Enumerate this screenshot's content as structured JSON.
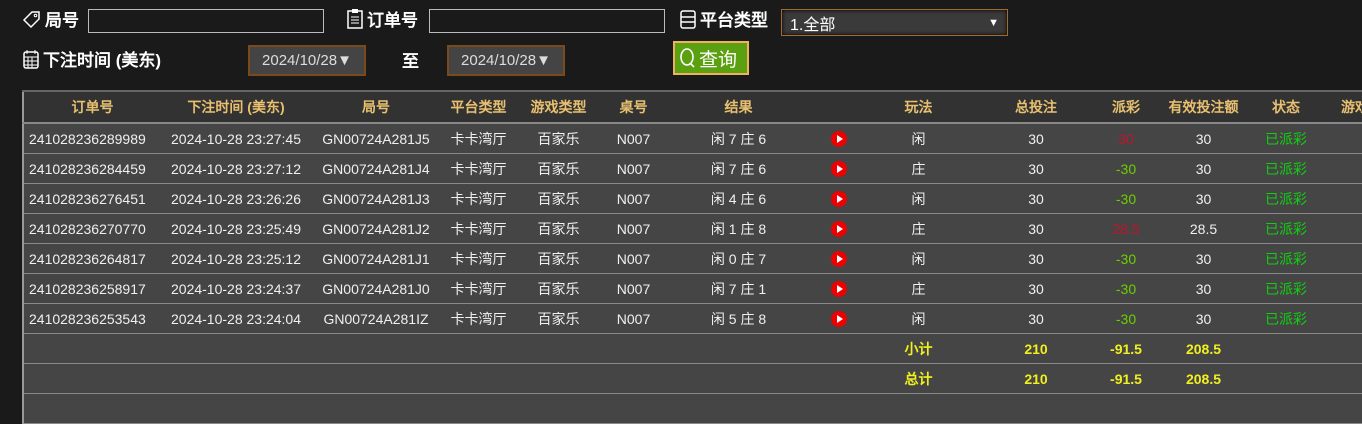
{
  "filters": {
    "round_label": "局号",
    "round_value": "",
    "order_label": "订单号",
    "order_value": "",
    "platform_label": "平台类型",
    "platform_value": "1.全部",
    "time_label": "下注时间 (美东)",
    "date_from": "2024/10/28▼",
    "to_label": "至",
    "date_to": "2024/10/28▼",
    "query_label": "查询"
  },
  "table": {
    "headers": [
      "订单号",
      "下注时间 (美东)",
      "局号",
      "平台类型",
      "游戏类型",
      "桌号",
      "结果",
      "",
      "玩法",
      "总投注",
      "派彩",
      "有效投注额",
      "状态",
      "游戏"
    ],
    "rows": [
      {
        "order": "241028236289989",
        "time": "2024-10-28 23:27:45",
        "round": "GN00724A281J5",
        "platform": "卡卡湾厅",
        "game": "百家乐",
        "table": "N007",
        "result": "闲 7 庄 6",
        "play": "闲",
        "bet": "30",
        "payout": "30",
        "payout_color": "red",
        "valid": "30",
        "status": "已派彩"
      },
      {
        "order": "241028236284459",
        "time": "2024-10-28 23:27:12",
        "round": "GN00724A281J4",
        "platform": "卡卡湾厅",
        "game": "百家乐",
        "table": "N007",
        "result": "闲 7 庄 6",
        "play": "庄",
        "bet": "30",
        "payout": "-30",
        "payout_color": "green",
        "valid": "30",
        "status": "已派彩"
      },
      {
        "order": "241028236276451",
        "time": "2024-10-28 23:26:26",
        "round": "GN00724A281J3",
        "platform": "卡卡湾厅",
        "game": "百家乐",
        "table": "N007",
        "result": "闲 4 庄 6",
        "play": "闲",
        "bet": "30",
        "payout": "-30",
        "payout_color": "green",
        "valid": "30",
        "status": "已派彩"
      },
      {
        "order": "241028236270770",
        "time": "2024-10-28 23:25:49",
        "round": "GN00724A281J2",
        "platform": "卡卡湾厅",
        "game": "百家乐",
        "table": "N007",
        "result": "闲 1 庄 8",
        "play": "庄",
        "bet": "30",
        "payout": "28.5",
        "payout_color": "red",
        "valid": "28.5",
        "status": "已派彩"
      },
      {
        "order": "241028236264817",
        "time": "2024-10-28 23:25:12",
        "round": "GN00724A281J1",
        "platform": "卡卡湾厅",
        "game": "百家乐",
        "table": "N007",
        "result": "闲 0 庄 7",
        "play": "闲",
        "bet": "30",
        "payout": "-30",
        "payout_color": "green",
        "valid": "30",
        "status": "已派彩"
      },
      {
        "order": "241028236258917",
        "time": "2024-10-28 23:24:37",
        "round": "GN00724A281J0",
        "platform": "卡卡湾厅",
        "game": "百家乐",
        "table": "N007",
        "result": "闲 7 庄 1",
        "play": "庄",
        "bet": "30",
        "payout": "-30",
        "payout_color": "green",
        "valid": "30",
        "status": "已派彩"
      },
      {
        "order": "241028236253543",
        "time": "2024-10-28 23:24:04",
        "round": "GN00724A281IZ",
        "platform": "卡卡湾厅",
        "game": "百家乐",
        "table": "N007",
        "result": "闲 5 庄 8",
        "play": "闲",
        "bet": "30",
        "payout": "-30",
        "payout_color": "green",
        "valid": "30",
        "status": "已派彩"
      }
    ],
    "subtotal": {
      "label": "小计",
      "bet": "210",
      "payout": "-91.5",
      "valid": "208.5"
    },
    "total": {
      "label": "总计",
      "bet": "210",
      "payout": "-91.5",
      "valid": "208.5"
    }
  }
}
